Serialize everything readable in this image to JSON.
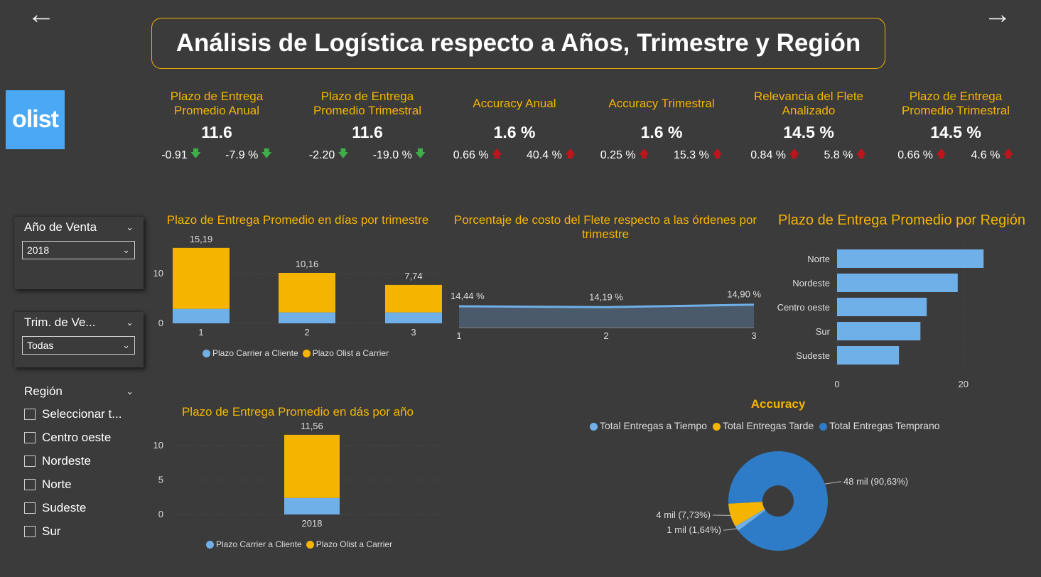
{
  "title": "Análisis de Logística respecto a Años, Trimestre y Región",
  "logo_text": "olist",
  "nav": {
    "back_icon": "arrow-left-icon",
    "forward_icon": "arrow-right-icon"
  },
  "colors": {
    "accent": "#f5b400",
    "blue": "#6fb0e8",
    "dark_blue": "#2e7cc7",
    "up": "#c0141b",
    "down": "#3fae49"
  },
  "kpis": [
    {
      "label": "Plazo de Entrega Promedio Anual",
      "value": "11.6",
      "d1": "-0.91",
      "d1_dir": "down",
      "d2": "-7.9 %",
      "d2_dir": "down"
    },
    {
      "label": "Plazo de Entrega Promedio Trimestral",
      "value": "11.6",
      "d1": "-2.20",
      "d1_dir": "down",
      "d2": "-19.0 %",
      "d2_dir": "down"
    },
    {
      "label": "Accuracy Anual",
      "value": "1.6 %",
      "d1": "0.66 %",
      "d1_dir": "up",
      "d2": "40.4 %",
      "d2_dir": "up"
    },
    {
      "label": "Accuracy Trimestral",
      "value": "1.6 %",
      "d1": "0.25 %",
      "d1_dir": "up",
      "d2": "15.3 %",
      "d2_dir": "up"
    },
    {
      "label": "Relevancia del Flete Analizado",
      "value": "14.5 %",
      "d1": "0.84 %",
      "d1_dir": "up",
      "d2": "5.8 %",
      "d2_dir": "up"
    },
    {
      "label": "Plazo de Entrega Promedio Trimestral",
      "value": "14.5 %",
      "d1": "0.66 %",
      "d1_dir": "up",
      "d2": "4.6 %",
      "d2_dir": "up"
    }
  ],
  "slicers": {
    "year": {
      "label": "Año de Venta",
      "selected": "2018"
    },
    "quarter": {
      "label": "Trim. de Ve...",
      "selected": "Todas"
    },
    "region": {
      "label": "Región",
      "options": [
        "Seleccionar t...",
        "Centro oeste",
        "Nordeste",
        "Norte",
        "Sudeste",
        "Sur"
      ]
    }
  },
  "chart_data": [
    {
      "id": "quarter",
      "type": "bar",
      "stacked": true,
      "title": "Plazo de Entrega Promedio en días por trimestre",
      "categories": [
        "1",
        "2",
        "3"
      ],
      "series": [
        {
          "name": "Plazo Carrier a Cliente",
          "values": [
            2.9,
            2.2,
            2.2
          ]
        },
        {
          "name": "Plazo Olist a Carrier",
          "values": [
            12.29,
            7.96,
            5.54
          ]
        }
      ],
      "totals": [
        "15,19",
        "10,16",
        "7,74"
      ],
      "yticks": [
        "0",
        "10"
      ],
      "ylim": [
        0,
        16
      ]
    },
    {
      "id": "freight",
      "type": "area",
      "title": "Porcentaje de costo del Flete respecto a las órdenes por trimestre",
      "categories": [
        "1",
        "2",
        "3"
      ],
      "values": [
        14.44,
        14.19,
        14.9
      ],
      "labels": [
        "14,44 %",
        "14,19 %",
        "14,90 %"
      ]
    },
    {
      "id": "region",
      "type": "bar",
      "orientation": "horizontal",
      "title": "Plazo de Entrega Promedio por Región",
      "categories": [
        "Norte",
        "Nordeste",
        "Centro oeste",
        "Sur",
        "Sudeste"
      ],
      "values": [
        23.2,
        19.1,
        14.2,
        13.2,
        9.8
      ],
      "xticks": [
        "0",
        "20"
      ],
      "xlim": [
        0,
        27
      ]
    },
    {
      "id": "year",
      "type": "bar",
      "stacked": true,
      "title": "Plazo de Entrega Promedio en dás por año",
      "categories": [
        "2018"
      ],
      "series": [
        {
          "name": "Plazo Carrier a Cliente",
          "values": [
            2.4
          ]
        },
        {
          "name": "Plazo Olist a Carrier",
          "values": [
            9.16
          ]
        }
      ],
      "totals": [
        "11,56"
      ],
      "yticks": [
        "0",
        "5",
        "10"
      ],
      "ylim": [
        0,
        13
      ]
    },
    {
      "id": "accuracy",
      "type": "pie",
      "title": "Accuracy",
      "legend": [
        "Total Entregas a Tiempo",
        "Total Entregas Tarde",
        "Total Entregas Temprano"
      ],
      "values": [
        1.64,
        7.73,
        90.63
      ],
      "labels": [
        "1 mil (1,64%)",
        "4 mil (7,73%)",
        "48 mil (90,63%)"
      ],
      "colors": [
        "#6fb0e8",
        "#f5b400",
        "#2e7cc7"
      ]
    }
  ]
}
